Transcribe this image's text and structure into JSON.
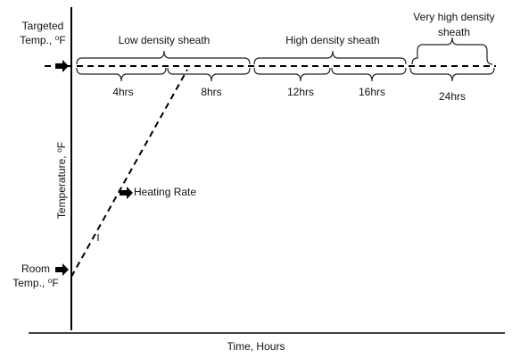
{
  "axes": {
    "y_label": "Temperature, ⁰F",
    "x_label": "Time, Hours"
  },
  "targeted": {
    "line1": "Targeted",
    "line2": "Temp., ⁰F"
  },
  "room": {
    "line1": "Room",
    "line2": "Temp., ⁰F"
  },
  "heating_rate": "Heating Rate",
  "groups": [
    {
      "label": "Low density sheath"
    },
    {
      "label": "High density sheath"
    },
    {
      "label_line1": "Very high density",
      "label_line2": "sheath"
    }
  ],
  "durations": [
    "4hrs",
    "8hrs",
    "12hrs",
    "16hrs",
    "24hrs"
  ]
}
